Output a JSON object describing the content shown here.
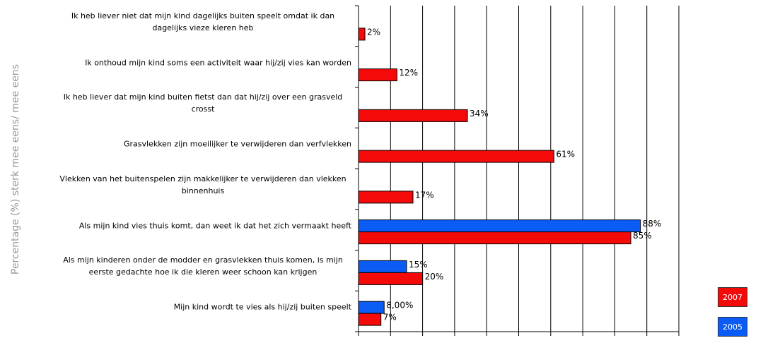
{
  "chart_data": {
    "type": "barh",
    "y_label": "Percentage (%) sterk mee eens/ mee eens",
    "categories": [
      "Ik heb liever niet dat mijn kind dagelijks buiten speelt omdat ik dan dagelijks vieze kleren heb",
      "Ik onthoud mijn kind soms een activiteit waar hij/zij vies kan worden",
      "Ik heb liever dat mijn kind buiten fietst dan dat hij/zij over een grasveld crosst",
      "Grasvlekken zijn moeilijker te verwijderen dan verfvlekken",
      "Vlekken van het buitenspelen zijn makkelijker te verwijderen dan vlekken binnenhuis",
      "Als mijn kind vies thuis komt, dan weet ik dat het zich vermaakt heeft",
      "Als mijn kinderen onder de modder en grasvlekken thuis komen, is mijn eerste gedachte hoe ik die kleren weer schoon kan krijgen",
      "Mijn kind wordt te vies als hij/zij buiten speelt"
    ],
    "series": [
      {
        "name": "2005",
        "color": "#0a5cf5",
        "values": [
          null,
          null,
          null,
          null,
          null,
          88,
          15,
          8
        ],
        "value_labels": [
          null,
          null,
          null,
          null,
          null,
          "88%",
          "15%",
          "8,00%"
        ]
      },
      {
        "name": "2007",
        "color": "#f50a0a",
        "values": [
          2,
          12,
          34,
          61,
          17,
          85,
          20,
          7
        ],
        "value_labels": [
          "2%",
          "12%",
          "34%",
          "61%",
          "17%",
          "85%",
          "20%",
          "7%"
        ]
      }
    ],
    "xlim": [
      0,
      100
    ],
    "xticks": [
      0,
      10,
      20,
      30,
      40,
      50,
      60,
      70,
      80,
      90,
      100
    ],
    "grid": true
  }
}
